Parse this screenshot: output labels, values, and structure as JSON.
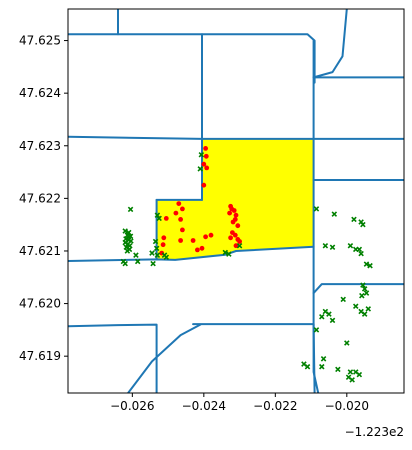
{
  "chart_data": {
    "type": "map-scatter",
    "title": "",
    "xlabel": "",
    "ylabel": "",
    "offset_label": "−1.223e2",
    "xlim": [
      -0.0278,
      -0.0184
    ],
    "ylim": [
      47.6183,
      47.6256
    ],
    "x_ticks": [
      {
        "value": -0.026,
        "label": "−0.026"
      },
      {
        "value": -0.024,
        "label": "−0.024"
      },
      {
        "value": -0.022,
        "label": "−0.022"
      },
      {
        "value": -0.02,
        "label": "−0.020"
      }
    ],
    "y_ticks": [
      {
        "value": 47.619,
        "label": "47.619"
      },
      {
        "value": 47.62,
        "label": "47.620"
      },
      {
        "value": 47.621,
        "label": "47.621"
      },
      {
        "value": 47.622,
        "label": "47.622"
      },
      {
        "value": 47.623,
        "label": "47.623"
      },
      {
        "value": 47.624,
        "label": "47.624"
      },
      {
        "value": 47.625,
        "label": "47.625"
      }
    ],
    "colors": {
      "roads": "#1f77b4",
      "highlight_fill": "#ffff00",
      "inside_points": "#ff0000",
      "outside_points": "#008000",
      "axes": "#000000"
    },
    "highlight_polygon": [
      [
        -0.02405,
        47.62313
      ],
      [
        -0.02093,
        47.62313
      ],
      [
        -0.02093,
        47.62108
      ],
      [
        -0.0231,
        47.621
      ],
      [
        -0.0234,
        47.62093
      ],
      [
        -0.0248,
        47.62083
      ],
      [
        -0.02532,
        47.62084
      ],
      [
        -0.02532,
        47.62197
      ],
      [
        -0.02405,
        47.62197
      ]
    ],
    "roads": [
      [
        [
          -0.0278,
          47.62512
        ],
        [
          -0.0211,
          47.62512
        ],
        [
          -0.0209,
          47.625
        ],
        [
          -0.0209,
          47.6242
        ]
      ],
      [
        [
          -0.0264,
          47.6256
        ],
        [
          -0.0264,
          47.62512
        ]
      ],
      [
        [
          -0.02405,
          47.62512
        ],
        [
          -0.02405,
          47.62197
        ]
      ],
      [
        [
          -0.0278,
          47.62317
        ],
        [
          -0.02405,
          47.62313
        ],
        [
          -0.02093,
          47.62313
        ],
        [
          -0.0184,
          47.62313
        ]
      ],
      [
        [
          -0.02093,
          47.625
        ],
        [
          -0.02093,
          47.6187
        ],
        [
          -0.0208,
          47.6183
        ]
      ],
      [
        [
          -0.02093,
          47.6243
        ],
        [
          -0.0184,
          47.6243
        ]
      ],
      [
        [
          -0.02093,
          47.62235
        ],
        [
          -0.0184,
          47.62235
        ]
      ],
      [
        [
          -0.0278,
          47.62081
        ],
        [
          -0.02532,
          47.62084
        ],
        [
          -0.0248,
          47.62083
        ],
        [
          -0.0234,
          47.62093
        ],
        [
          -0.0231,
          47.621
        ],
        [
          -0.02093,
          47.62108
        ]
      ],
      [
        [
          -0.02532,
          47.62197
        ],
        [
          -0.02532,
          47.62084
        ]
      ],
      [
        [
          -0.02532,
          47.62197
        ],
        [
          -0.02405,
          47.62197
        ]
      ],
      [
        [
          -0.0184,
          47.62037
        ],
        [
          -0.0207,
          47.62037
        ],
        [
          -0.02093,
          47.6202
        ]
      ],
      [
        [
          -0.0278,
          47.61957
        ],
        [
          -0.0264,
          47.61959
        ],
        [
          -0.02532,
          47.6196
        ],
        [
          -0.02532,
          47.6183
        ]
      ],
      [
        [
          -0.0243,
          47.61961
        ],
        [
          -0.02093,
          47.61961
        ]
      ],
      [
        [
          -0.02612,
          47.6183
        ],
        [
          -0.02545,
          47.6189
        ],
        [
          -0.02465,
          47.6194
        ],
        [
          -0.0241,
          47.6196
        ]
      ],
      [
        [
          -0.02,
          47.6256
        ],
        [
          -0.02012,
          47.6247
        ],
        [
          -0.0204,
          47.6244
        ],
        [
          -0.02093,
          47.6243
        ]
      ],
      [
        [
          -0.02093,
          47.6196
        ],
        [
          -0.0209,
          47.6183
        ]
      ]
    ],
    "series": [
      {
        "marker": "circle",
        "points": [
          [
            -0.02395,
            47.62295
          ],
          [
            -0.02393,
            47.6228
          ],
          [
            -0.024,
            47.62265
          ],
          [
            -0.02392,
            47.62258
          ],
          [
            -0.024,
            47.62225
          ],
          [
            -0.0247,
            47.6219
          ],
          [
            -0.0246,
            47.6218
          ],
          [
            -0.02478,
            47.62172
          ],
          [
            -0.02465,
            47.6216
          ],
          [
            -0.0246,
            47.6214
          ],
          [
            -0.02505,
            47.62162
          ],
          [
            -0.02512,
            47.62125
          ],
          [
            -0.02514,
            47.62112
          ],
          [
            -0.02518,
            47.62096
          ],
          [
            -0.02465,
            47.6212
          ],
          [
            -0.0243,
            47.6212
          ],
          [
            -0.02418,
            47.62102
          ],
          [
            -0.02395,
            47.62127
          ],
          [
            -0.02405,
            47.62105
          ],
          [
            -0.0238,
            47.6213
          ],
          [
            -0.02325,
            47.62185
          ],
          [
            -0.02322,
            47.6218
          ],
          [
            -0.02315,
            47.62177
          ],
          [
            -0.02328,
            47.62172
          ],
          [
            -0.0231,
            47.62168
          ],
          [
            -0.02312,
            47.6216
          ],
          [
            -0.02318,
            47.62155
          ],
          [
            -0.02305,
            47.62148
          ],
          [
            -0.0232,
            47.62135
          ],
          [
            -0.02312,
            47.6213
          ],
          [
            -0.02325,
            47.62125
          ],
          [
            -0.02305,
            47.62122
          ],
          [
            -0.0231,
            47.6211
          ],
          [
            -0.023,
            47.62118
          ]
        ]
      },
      {
        "marker": "x",
        "points": [
          [
            -0.02407,
            47.62283
          ],
          [
            -0.0241,
            47.62256
          ],
          [
            -0.02605,
            47.62179
          ],
          [
            -0.0253,
            47.62168
          ],
          [
            -0.02525,
            47.62162
          ],
          [
            -0.02535,
            47.62118
          ],
          [
            -0.02532,
            47.62105
          ],
          [
            -0.02545,
            47.62096
          ],
          [
            -0.0253,
            47.62092
          ],
          [
            -0.0251,
            47.62092
          ],
          [
            -0.02505,
            47.62088
          ],
          [
            -0.0262,
            47.62138
          ],
          [
            -0.0261,
            47.62135
          ],
          [
            -0.02614,
            47.6213
          ],
          [
            -0.02605,
            47.62128
          ],
          [
            -0.02618,
            47.62123
          ],
          [
            -0.0261,
            47.62121
          ],
          [
            -0.02604,
            47.62119
          ],
          [
            -0.0262,
            47.62116
          ],
          [
            -0.02612,
            47.62113
          ],
          [
            -0.02607,
            47.6211
          ],
          [
            -0.02617,
            47.62107
          ],
          [
            -0.02608,
            47.62103
          ],
          [
            -0.02614,
            47.621
          ],
          [
            -0.02625,
            47.6208
          ],
          [
            -0.0262,
            47.62076
          ],
          [
            -0.0259,
            47.62092
          ],
          [
            -0.02585,
            47.6208
          ],
          [
            -0.02542,
            47.62076
          ],
          [
            -0.0234,
            47.62097
          ],
          [
            -0.0233,
            47.62094
          ],
          [
            -0.023,
            47.6211
          ],
          [
            -0.02085,
            47.6218
          ],
          [
            -0.02035,
            47.6217
          ],
          [
            -0.0198,
            47.6216
          ],
          [
            -0.0196,
            47.62155
          ],
          [
            -0.01955,
            47.6215
          ],
          [
            -0.0206,
            47.6211
          ],
          [
            -0.0204,
            47.62107
          ],
          [
            -0.0199,
            47.6211
          ],
          [
            -0.01975,
            47.62103
          ],
          [
            -0.01965,
            47.62103
          ],
          [
            -0.0196,
            47.62095
          ],
          [
            -0.01945,
            47.62075
          ],
          [
            -0.01935,
            47.62072
          ],
          [
            -0.01955,
            47.62035
          ],
          [
            -0.0195,
            47.62028
          ],
          [
            -0.01945,
            47.6202
          ],
          [
            -0.01958,
            47.62015
          ],
          [
            -0.0201,
            47.62008
          ],
          [
            -0.01975,
            47.61995
          ],
          [
            -0.0196,
            47.61985
          ],
          [
            -0.0195,
            47.6198
          ],
          [
            -0.0194,
            47.6199
          ],
          [
            -0.0206,
            47.61985
          ],
          [
            -0.0207,
            47.61975
          ],
          [
            -0.0205,
            47.6198
          ],
          [
            -0.0204,
            47.61968
          ],
          [
            -0.02085,
            47.6195
          ],
          [
            -0.02,
            47.61925
          ],
          [
            -0.02065,
            47.61895
          ],
          [
            -0.0207,
            47.6188
          ],
          [
            -0.0211,
            47.6188
          ],
          [
            -0.0212,
            47.61885
          ],
          [
            -0.02025,
            47.61875
          ],
          [
            -0.0199,
            47.6187
          ],
          [
            -0.01995,
            47.6186
          ],
          [
            -0.01985,
            47.61855
          ],
          [
            -0.01975,
            47.6187
          ],
          [
            -0.01965,
            47.61865
          ]
        ]
      }
    ]
  }
}
